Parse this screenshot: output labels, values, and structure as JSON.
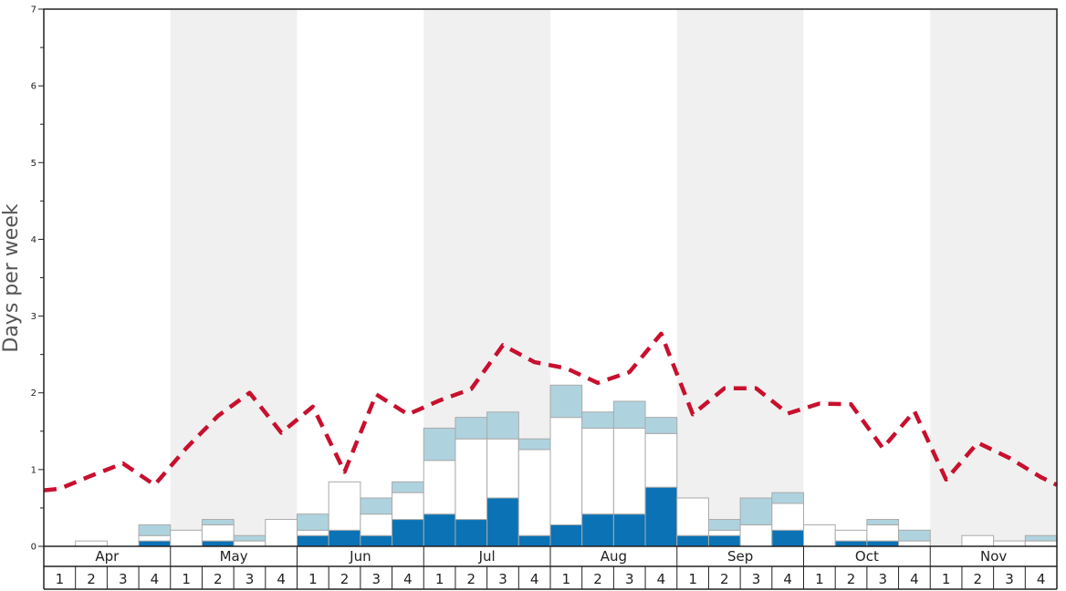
{
  "chart_data": {
    "type": "bar",
    "ylabel": "Days per week",
    "ylim": [
      0,
      7
    ],
    "yticks": [
      0,
      1,
      2,
      3,
      4,
      5,
      6,
      7
    ],
    "months": [
      "Apr",
      "May",
      "Jun",
      "Jul",
      "Aug",
      "Sep",
      "Oct",
      "Nov"
    ],
    "week_labels": [
      "1",
      "2",
      "3",
      "4"
    ],
    "shaded_months": [
      "May",
      "Jul",
      "Sep",
      "Nov"
    ],
    "colors": {
      "dark": "#0a72b5",
      "light": "#aed3df",
      "white": "#ffffff",
      "bar_border": "#aaaaaa",
      "line": "#c8102e",
      "shade": "#f0f0f0"
    },
    "series": [
      {
        "key": "dark",
        "values": [
          0,
          0,
          0,
          0.07,
          0,
          0.07,
          0,
          0,
          0.14,
          0.21,
          0.14,
          0.35,
          0.42,
          0.35,
          0.63,
          0.14,
          0.28,
          0.42,
          0.42,
          0.77,
          0.14,
          0.14,
          0,
          0.21,
          0,
          0.07,
          0.07,
          0,
          0,
          0,
          0,
          0
        ]
      },
      {
        "key": "white",
        "values": [
          0,
          0.07,
          0,
          0.07,
          0.21,
          0.21,
          0.07,
          0.35,
          0.07,
          0.63,
          0.28,
          0.35,
          0.7,
          1.05,
          0.77,
          1.12,
          1.4,
          1.12,
          1.12,
          0.7,
          0.49,
          0.07,
          0.28,
          0.35,
          0.28,
          0.14,
          0.21,
          0.07,
          0,
          0.14,
          0.07,
          0.07
        ]
      },
      {
        "key": "light",
        "values": [
          0,
          0,
          0,
          0.14,
          0,
          0.07,
          0.07,
          0,
          0.21,
          0,
          0.21,
          0.14,
          0.42,
          0.28,
          0.35,
          0.14,
          0.42,
          0.21,
          0.35,
          0.21,
          0,
          0.14,
          0.35,
          0.14,
          0,
          0,
          0.07,
          0.14,
          0,
          0,
          0,
          0.07
        ]
      }
    ],
    "line": {
      "values": [
        0.75,
        0.92,
        1.08,
        0.8,
        1.28,
        1.7,
        2.0,
        1.48,
        1.82,
        0.97,
        1.98,
        1.72,
        1.9,
        2.05,
        2.62,
        2.4,
        2.32,
        2.13,
        2.27,
        2.77,
        1.72,
        2.06,
        2.06,
        1.73,
        1.86,
        1.85,
        1.28,
        1.76,
        0.87,
        1.35,
        1.15,
        0.9
      ],
      "start": 0.73,
      "end": 0.8
    }
  }
}
